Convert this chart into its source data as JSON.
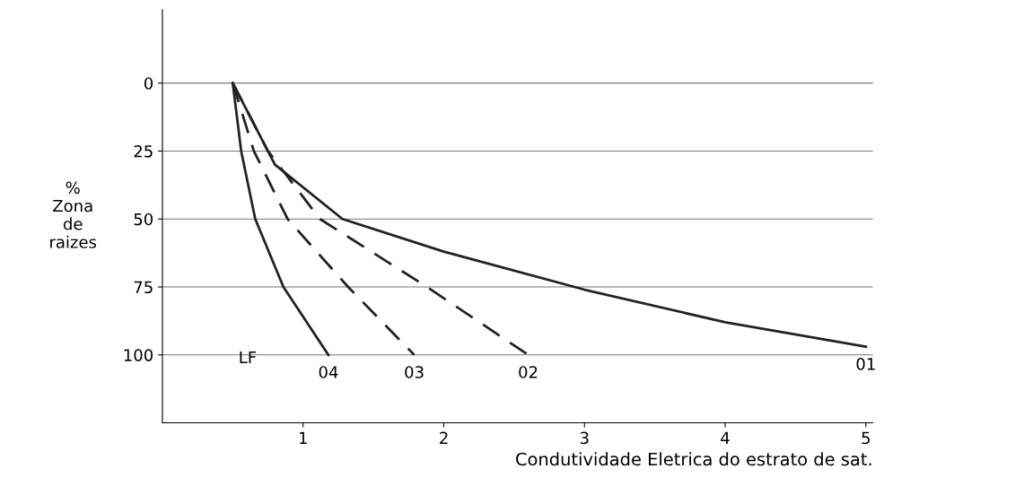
{
  "chart_data": {
    "type": "line",
    "xlabel": "Condutividade Eletrica do estrato de sat.",
    "ylabel": "% Zona de raizes",
    "series": [
      {
        "name": "01",
        "color": "#222222",
        "line_style": "solid",
        "x": [
          0.5,
          0.8,
          1.28,
          2.0,
          3.0,
          4.0,
          5.0
        ],
        "values": [
          0,
          30,
          50,
          62,
          76,
          88,
          97
        ]
      },
      {
        "name": "02",
        "color": "#222222",
        "line_style": "dashed",
        "x": [
          0.5,
          0.75,
          1.12,
          1.88,
          2.6
        ],
        "values": [
          0,
          25,
          50,
          75,
          100
        ]
      },
      {
        "name": "03",
        "color": "#222222",
        "line_style": "dashed",
        "x": [
          0.5,
          0.65,
          0.89,
          1.32,
          1.79
        ],
        "values": [
          0,
          25,
          50,
          75,
          100
        ]
      },
      {
        "name": "04",
        "color": "#222222",
        "line_style": "solid",
        "x": [
          0.5,
          0.56,
          0.66,
          0.86,
          1.18
        ],
        "values": [
          0,
          25,
          50,
          75,
          100
        ]
      }
    ],
    "annotations": [
      "LF"
    ],
    "xlim": [
      0,
      5.05
    ],
    "ylim": [
      125,
      -27
    ],
    "xticks": [
      1,
      2,
      3,
      4,
      5
    ],
    "yticks": [
      0,
      25,
      50,
      75,
      100
    ],
    "grid": "y",
    "marker": "none"
  }
}
